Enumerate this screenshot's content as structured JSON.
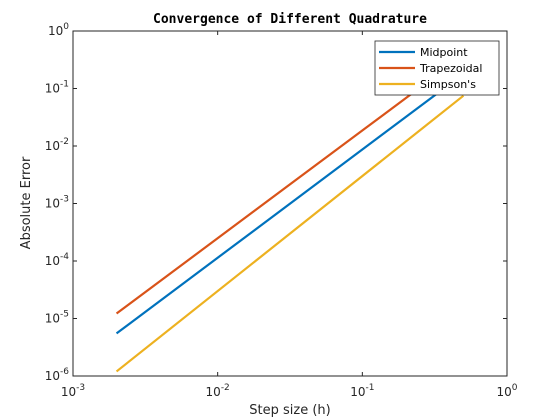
{
  "chart_data": {
    "type": "line",
    "title": "Convergence of Different Quadrature",
    "xlabel": "Step size (h)",
    "ylabel": "Absolute Error",
    "xscale": "log",
    "yscale": "log",
    "xlim": [
      0.001,
      1
    ],
    "ylim": [
      1e-06,
      1
    ],
    "x_ticks": [
      {
        "base": "10",
        "exp": "-3"
      },
      {
        "base": "10",
        "exp": "-2"
      },
      {
        "base": "10",
        "exp": "-1"
      },
      {
        "base": "10",
        "exp": "0"
      }
    ],
    "y_ticks": [
      {
        "base": "10",
        "exp": "-6"
      },
      {
        "base": "10",
        "exp": "-5"
      },
      {
        "base": "10",
        "exp": "-4"
      },
      {
        "base": "10",
        "exp": "-3"
      },
      {
        "base": "10",
        "exp": "-2"
      },
      {
        "base": "10",
        "exp": "-1"
      },
      {
        "base": "10",
        "exp": "0"
      }
    ],
    "grid": false,
    "legend_position": "top-right",
    "series": [
      {
        "name": "Midpoint",
        "color": "#0072BD",
        "x": [
          0.002,
          0.5
        ],
        "y": [
          5.5e-06,
          0.18
        ]
      },
      {
        "name": "Trapezoidal",
        "color": "#D95319",
        "x": [
          0.002,
          0.5
        ],
        "y": [
          1.22e-05,
          0.38
        ]
      },
      {
        "name": "Simpson's",
        "color": "#EDB120",
        "x": [
          0.002,
          0.5
        ],
        "y": [
          1.2e-06,
          0.075
        ]
      }
    ]
  }
}
